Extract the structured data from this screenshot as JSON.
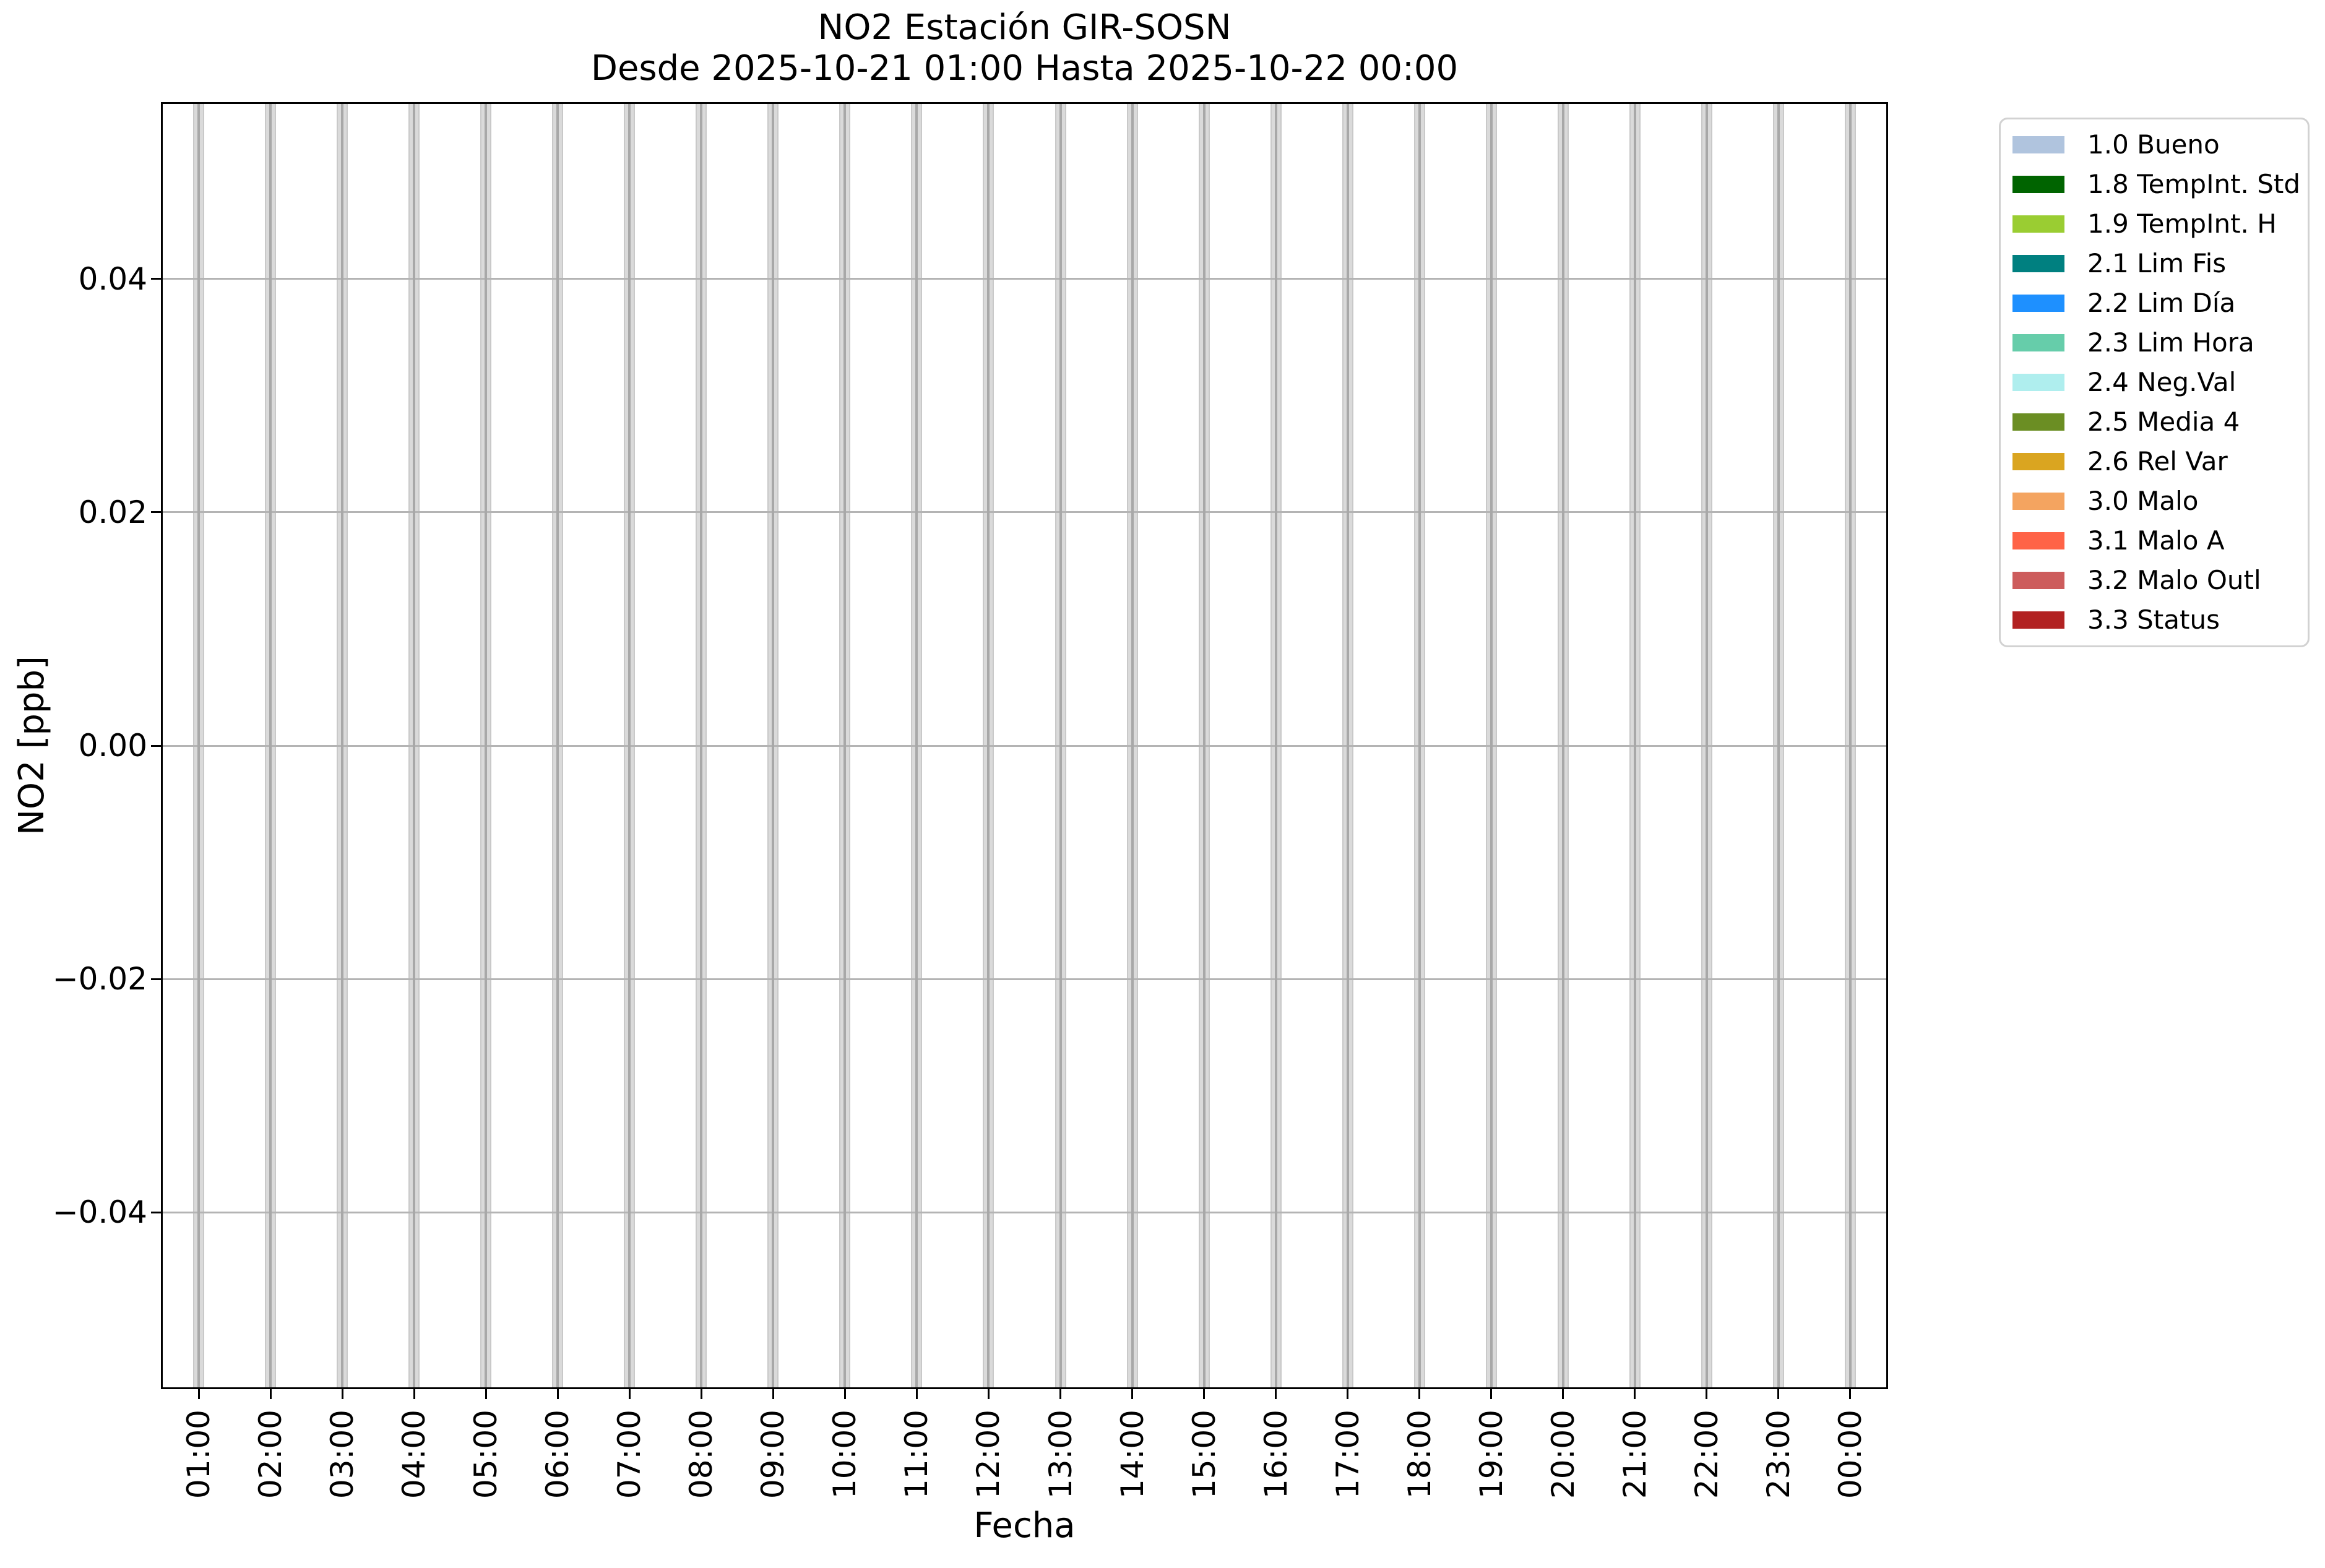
{
  "chart_data": {
    "type": "bar",
    "title": "NO2 Estación GIR-SOSN",
    "subtitle": "Desde 2025-10-21 01:00 Hasta 2025-10-22 00:00",
    "xlabel": "Fecha",
    "ylabel": "NO2 [ppb]",
    "categories": [
      "01:00",
      "02:00",
      "03:00",
      "04:00",
      "05:00",
      "06:00",
      "07:00",
      "08:00",
      "09:00",
      "10:00",
      "11:00",
      "12:00",
      "13:00",
      "14:00",
      "15:00",
      "16:00",
      "17:00",
      "18:00",
      "19:00",
      "20:00",
      "21:00",
      "22:00",
      "23:00",
      "00:00"
    ],
    "values": [
      null,
      null,
      null,
      null,
      null,
      null,
      null,
      null,
      null,
      null,
      null,
      null,
      null,
      null,
      null,
      null,
      null,
      null,
      null,
      null,
      null,
      null,
      null,
      null
    ],
    "bars_appearance": "full-height gray placeholder band at every hour (no colored data values visible)",
    "ylim": [
      -0.055,
      0.055
    ],
    "yticks": {
      "values": [
        0.04,
        0.02,
        0,
        -0.02,
        -0.04
      ],
      "labels": [
        "0.04",
        "0.02",
        "0.00",
        "−0.02",
        "−0.04"
      ]
    },
    "grid": true,
    "xticks_rotation": 90,
    "legend": {
      "position": "outside upper right",
      "entries": [
        {
          "label": "1.0 Bueno",
          "color": "#b0c4de"
        },
        {
          "label": "1.8 TempInt. Std",
          "color": "#006400"
        },
        {
          "label": "1.9 TempInt. H",
          "color": "#9acd32"
        },
        {
          "label": "2.1 Lim Fis",
          "color": "#008080"
        },
        {
          "label": "2.2 Lim Día",
          "color": "#1e90ff"
        },
        {
          "label": "2.3 Lim Hora",
          "color": "#66cdaa"
        },
        {
          "label": "2.4 Neg.Val",
          "color": "#afeeee"
        },
        {
          "label": "2.5 Media 4",
          "color": "#6b8e23"
        },
        {
          "label": "2.6 Rel Var",
          "color": "#daa520"
        },
        {
          "label": "3.0 Malo",
          "color": "#f4a460"
        },
        {
          "label": "3.1 Malo A",
          "color": "#ff6347"
        },
        {
          "label": "3.2 Malo Outl",
          "color": "#cd5c5c"
        },
        {
          "label": "3.3 Status",
          "color": "#b22222"
        }
      ]
    }
  },
  "style": {
    "background": "#ffffff",
    "text": "#000000",
    "spine": "#000000",
    "grid_line": "#b4b4b4",
    "band_fill": "#dadada",
    "band_edge": "#c9c9c9",
    "band_center_line": "#a8a8a8",
    "legend_border": "#d2d2d2"
  }
}
